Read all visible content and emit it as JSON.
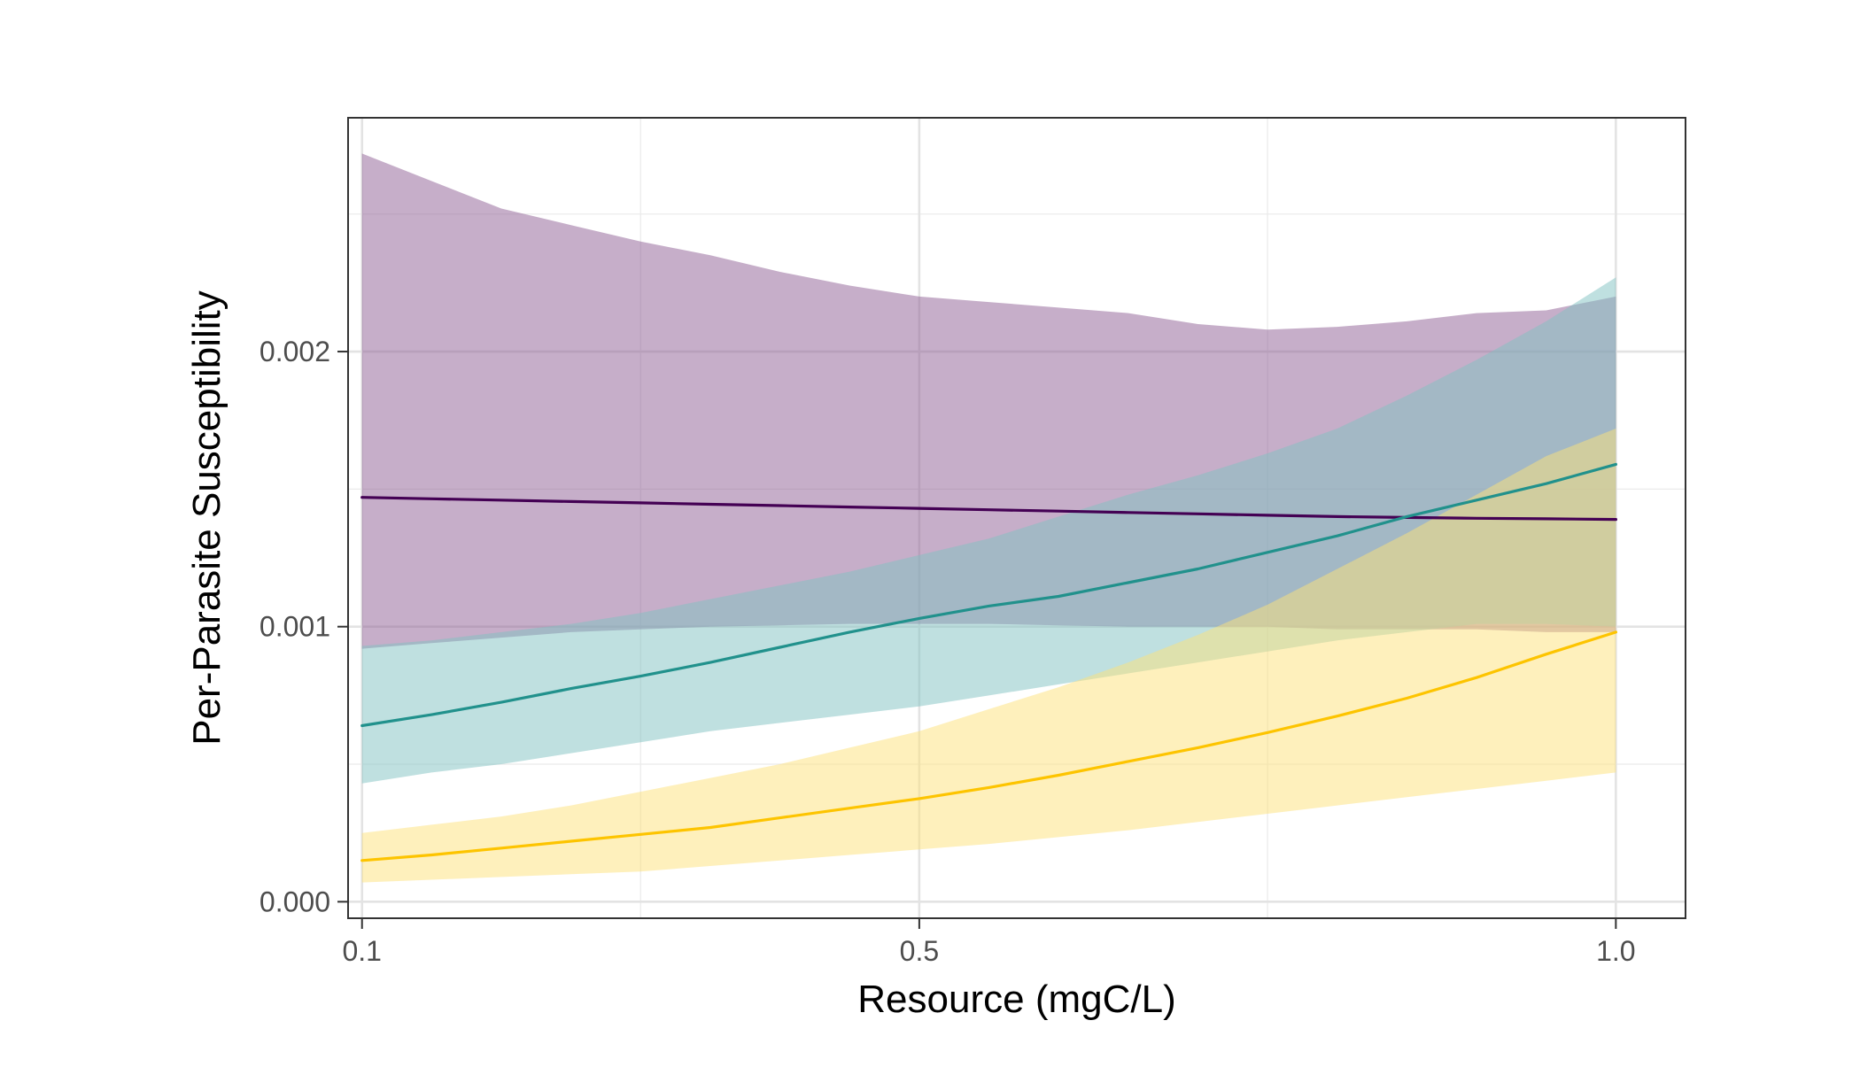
{
  "chart_data": {
    "type": "line",
    "title": "",
    "xlabel": "Resource (mgC/L)",
    "ylabel": "Per-Parasite Susceptibility",
    "xlim": [
      0.09,
      1.05
    ],
    "ylim": [
      -6e-05,
      0.00285
    ],
    "x_ticks": [
      0.1,
      0.5,
      1.0
    ],
    "x_tick_labels": [
      "0.1",
      "0.5",
      "1.0"
    ],
    "x_minor_gridlines": [
      0.3,
      0.75
    ],
    "y_ticks": [
      0.0,
      0.001,
      0.002
    ],
    "y_tick_labels": [
      "0.000",
      "0.001",
      "0.002"
    ],
    "y_minor_gridlines": [
      0.0005,
      0.0015,
      0.0025
    ],
    "grid": true,
    "legend": "none",
    "x": [
      0.1,
      0.15,
      0.2,
      0.25,
      0.3,
      0.35,
      0.4,
      0.45,
      0.5,
      0.55,
      0.6,
      0.65,
      0.7,
      0.75,
      0.8,
      0.85,
      0.9,
      0.95,
      1.0
    ],
    "series": [
      {
        "color": "#440154",
        "band_color": "#8e5d93",
        "values": [
          0.00147,
          0.001465,
          0.00146,
          0.001455,
          0.00145,
          0.001445,
          0.00144,
          0.001435,
          0.00143,
          0.001425,
          0.00142,
          0.001415,
          0.00141,
          0.001405,
          0.0014,
          0.001397,
          0.001394,
          0.001392,
          0.00139
        ],
        "lower": [
          0.00092,
          0.00094,
          0.00096,
          0.00098,
          0.00099,
          0.001,
          0.001005,
          0.00101,
          0.00101,
          0.00101,
          0.001005,
          0.001,
          0.001,
          0.001,
          0.00099,
          0.00099,
          0.00099,
          0.00098,
          0.00098
        ],
        "upper": [
          0.00272,
          0.00262,
          0.00252,
          0.00246,
          0.0024,
          0.00235,
          0.00229,
          0.00224,
          0.0022,
          0.00218,
          0.00216,
          0.00214,
          0.0021,
          0.00208,
          0.00209,
          0.00211,
          0.00214,
          0.00215,
          0.0022
        ]
      },
      {
        "color": "#21918c",
        "band_color": "#7fc2c1",
        "values": [
          0.00064,
          0.00068,
          0.000725,
          0.000775,
          0.00082,
          0.00087,
          0.000925,
          0.00098,
          0.00103,
          0.001075,
          0.00111,
          0.00116,
          0.00121,
          0.00127,
          0.00133,
          0.0014,
          0.00146,
          0.00152,
          0.00159
        ],
        "lower": [
          0.00043,
          0.00047,
          0.0005,
          0.00054,
          0.00058,
          0.00062,
          0.00065,
          0.00068,
          0.00071,
          0.00075,
          0.00079,
          0.00083,
          0.00087,
          0.00091,
          0.00095,
          0.00098,
          0.00101,
          0.00101,
          0.001
        ],
        "upper": [
          0.00093,
          0.00095,
          0.00098,
          0.00101,
          0.00105,
          0.0011,
          0.00115,
          0.0012,
          0.00126,
          0.00132,
          0.0014,
          0.00148,
          0.00155,
          0.00163,
          0.00172,
          0.00184,
          0.00197,
          0.00211,
          0.00227
        ]
      },
      {
        "color": "#fdc400",
        "band_color": "#fde27a",
        "values": [
          0.00015,
          0.00017,
          0.000195,
          0.00022,
          0.000245,
          0.00027,
          0.000305,
          0.00034,
          0.000375,
          0.000415,
          0.00046,
          0.00051,
          0.00056,
          0.000615,
          0.000675,
          0.00074,
          0.000815,
          0.0009,
          0.00098
        ],
        "lower": [
          7e-05,
          8e-05,
          9e-05,
          0.0001,
          0.00011,
          0.00013,
          0.00015,
          0.00017,
          0.00019,
          0.00021,
          0.000235,
          0.00026,
          0.00029,
          0.00032,
          0.00035,
          0.00038,
          0.00041,
          0.00044,
          0.00047
        ],
        "upper": [
          0.00025,
          0.00028,
          0.00031,
          0.00035,
          0.0004,
          0.00045,
          0.0005,
          0.00056,
          0.00062,
          0.0007,
          0.00078,
          0.00087,
          0.00097,
          0.00108,
          0.00121,
          0.00134,
          0.00148,
          0.00162,
          0.00172
        ]
      }
    ]
  }
}
